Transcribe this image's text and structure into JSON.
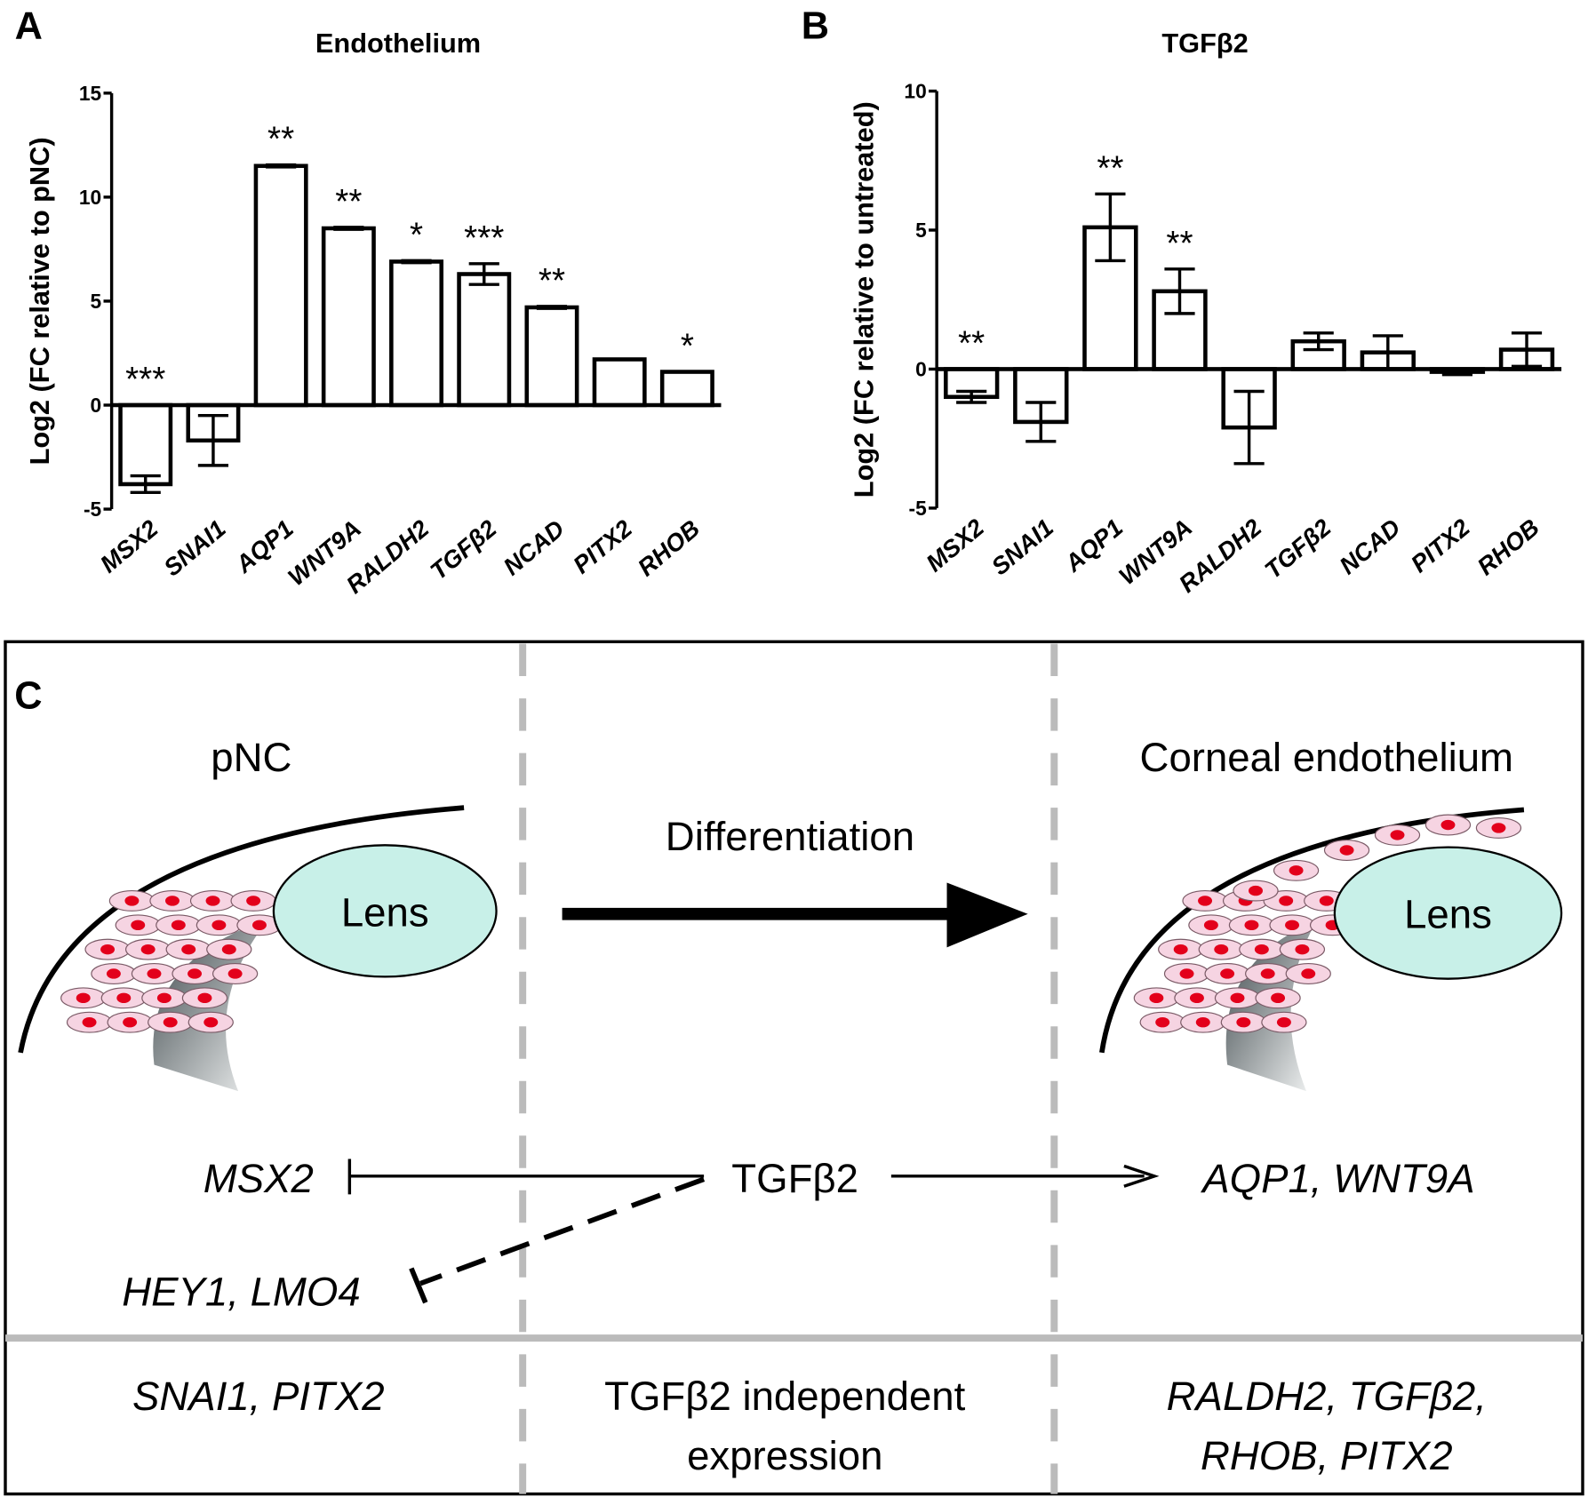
{
  "chart_data": [
    {
      "type": "bar",
      "panel": "A",
      "title": "Endothelium",
      "ylabel": "Log2 (FC relative to pNC)",
      "categories": [
        "MSX2",
        "SNAI1",
        "AQP1",
        "WNT9A",
        "RALDH2",
        "TGFβ2",
        "NCAD",
        "PITX2",
        "RHOB"
      ],
      "values": [
        -3.8,
        -1.7,
        11.5,
        8.5,
        6.9,
        6.3,
        4.7,
        2.2,
        1.6
      ],
      "errors": [
        0.4,
        1.2,
        0.05,
        0.05,
        0.05,
        0.5,
        0.05,
        0,
        0
      ],
      "significance": [
        "***",
        null,
        "**",
        "**",
        "*",
        "***",
        "**",
        null,
        "*"
      ],
      "color": "#ffffff",
      "ylim": [
        -5,
        15
      ],
      "yticks": [
        -5,
        0,
        5,
        10,
        15
      ]
    },
    {
      "type": "bar",
      "panel": "B",
      "title": "TGFβ2",
      "ylabel": "Log2 (FC relative to untreated)",
      "categories": [
        "MSX2",
        "SNAI1",
        "AQP1",
        "WNT9A",
        "RALDH2",
        "TGFβ2",
        "NCAD",
        "PITX2",
        "RHOB"
      ],
      "values": [
        -1.0,
        -1.9,
        5.1,
        2.8,
        -2.1,
        1.0,
        0.6,
        -0.1,
        0.7
      ],
      "errors": [
        0.2,
        0.7,
        1.2,
        0.8,
        1.3,
        0.3,
        0.6,
        0.1,
        0.6
      ],
      "significance": [
        "**",
        null,
        "**",
        "**",
        null,
        null,
        null,
        null,
        null
      ],
      "color": "#ffffff",
      "ylim": [
        -5,
        10
      ],
      "yticks": [
        -5,
        0,
        5,
        10
      ]
    }
  ],
  "diagram": {
    "panel": "C",
    "left_title": "pNC",
    "right_title": "Corneal endothelium",
    "lens_left": "Lens",
    "lens_right": "Lens",
    "process": "Differentiation",
    "msx2": "MSX2",
    "tgfb2": "TGFβ2",
    "targets": "AQP1, WNT9A",
    "repressed": "HEY1, LMO4",
    "bottom_left": [
      "SNAI1, PITX2"
    ],
    "bottom_middle": [
      "TGFβ2 independent",
      "expression"
    ],
    "bottom_right": [
      "RALDH2, TGFβ2,",
      "RHOB, PITX2"
    ]
  }
}
